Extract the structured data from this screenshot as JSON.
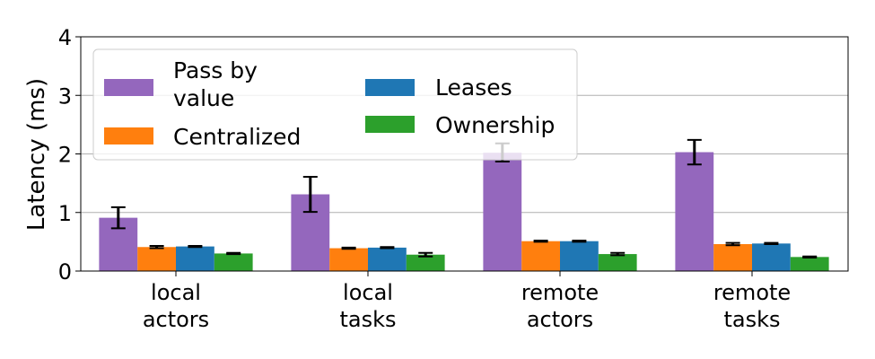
{
  "chart_data": {
    "type": "bar",
    "title": "",
    "xlabel": "",
    "ylabel": "Latency (ms)",
    "ylim": [
      0,
      4
    ],
    "yticks": [
      "0",
      "1",
      "2",
      "3",
      "4"
    ],
    "grid": "horizontal",
    "legend_position": "top-left",
    "categories": [
      [
        "local",
        "actors"
      ],
      [
        "local",
        "tasks"
      ],
      [
        "remote",
        "actors"
      ],
      [
        "remote",
        "tasks"
      ]
    ],
    "series": [
      {
        "name": "Pass by value",
        "legend_lines": [
          "Pass by",
          "value"
        ],
        "color": "#9467bd",
        "values": [
          0.91,
          1.31,
          2.02,
          2.03
        ],
        "err_low": [
          0.73,
          1.01,
          1.87,
          1.82
        ],
        "err_high": [
          1.09,
          1.61,
          2.18,
          2.24
        ]
      },
      {
        "name": "Centralized",
        "legend_lines": [
          "Centralized"
        ],
        "color": "#ff7f0e",
        "values": [
          0.41,
          0.39,
          0.51,
          0.46
        ],
        "err_low": [
          0.39,
          0.38,
          0.5,
          0.44
        ],
        "err_high": [
          0.43,
          0.4,
          0.52,
          0.48
        ]
      },
      {
        "name": "Leases",
        "legend_lines": [
          "Leases"
        ],
        "color": "#1f77b4",
        "values": [
          0.42,
          0.4,
          0.51,
          0.47
        ],
        "err_low": [
          0.41,
          0.39,
          0.5,
          0.46
        ],
        "err_high": [
          0.43,
          0.41,
          0.52,
          0.48
        ]
      },
      {
        "name": "Ownership",
        "legend_lines": [
          "Ownership"
        ],
        "color": "#2ca02c",
        "values": [
          0.3,
          0.28,
          0.29,
          0.24
        ],
        "err_low": [
          0.29,
          0.25,
          0.27,
          0.23
        ],
        "err_high": [
          0.31,
          0.31,
          0.31,
          0.25
        ]
      }
    ]
  }
}
